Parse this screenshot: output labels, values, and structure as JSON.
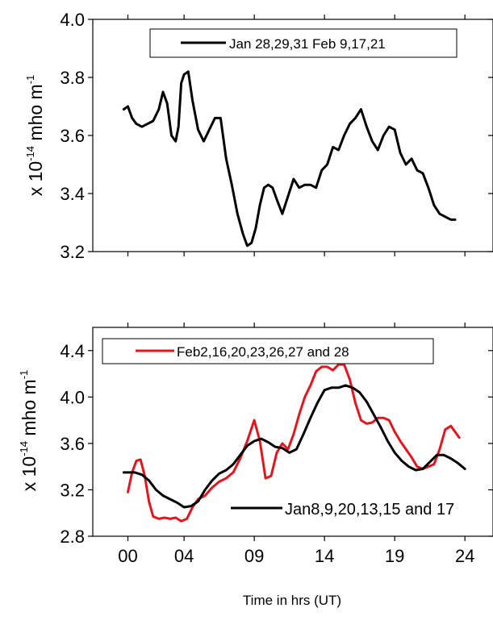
{
  "chart_data": [
    {
      "type": "line",
      "xlim": [
        -2.5,
        26
      ],
      "ylim": [
        3.2,
        4.0
      ],
      "yticks": [
        3.2,
        3.4,
        3.6,
        3.8,
        4.0
      ],
      "ytick_labels": [
        "3.2",
        "3.4",
        "3.6",
        "3.8",
        "4.0"
      ],
      "xticks_shown": false,
      "ylabel": {
        "prefix": "x 10",
        "exp": "-14",
        "unit": " mho m",
        "unit_exp": "-1"
      },
      "legend_position": "top-right",
      "series": [
        {
          "name": "Jan 28,29,31 Feb 9,17,21",
          "color": "#000000",
          "x": [
            -0.3,
            0,
            0.3,
            0.6,
            1,
            1.4,
            1.8,
            2.2,
            2.5,
            2.8,
            3.1,
            3.4,
            3.6,
            3.8,
            4,
            4.3,
            4.6,
            5,
            5.4,
            5.8,
            6.2,
            6.6,
            7,
            7.4,
            7.8,
            8.2,
            8.5,
            8.8,
            9.1,
            9.4,
            9.7,
            10,
            10.3,
            10.6,
            11,
            11.4,
            11.8,
            12.2,
            12.6,
            13,
            13.4,
            13.8,
            14.2,
            14.6,
            15,
            15.4,
            15.8,
            16.2,
            16.6,
            17,
            17.4,
            17.8,
            18.2,
            18.6,
            19,
            19.4,
            19.8,
            20.2,
            20.6,
            21,
            21.4,
            21.8,
            22.2,
            22.6,
            23,
            23.3
          ],
          "y": [
            3.69,
            3.7,
            3.66,
            3.64,
            3.63,
            3.64,
            3.65,
            3.69,
            3.75,
            3.71,
            3.6,
            3.58,
            3.63,
            3.78,
            3.81,
            3.82,
            3.72,
            3.62,
            3.58,
            3.62,
            3.66,
            3.66,
            3.52,
            3.43,
            3.33,
            3.26,
            3.22,
            3.23,
            3.28,
            3.36,
            3.42,
            3.43,
            3.42,
            3.38,
            3.33,
            3.39,
            3.45,
            3.42,
            3.43,
            3.43,
            3.42,
            3.48,
            3.5,
            3.56,
            3.55,
            3.6,
            3.64,
            3.66,
            3.69,
            3.63,
            3.58,
            3.55,
            3.6,
            3.63,
            3.62,
            3.54,
            3.5,
            3.52,
            3.48,
            3.47,
            3.42,
            3.36,
            3.33,
            3.32,
            3.31,
            3.31
          ]
        }
      ]
    },
    {
      "type": "line",
      "xlim": [
        -2.5,
        26
      ],
      "ylim": [
        2.8,
        4.6
      ],
      "xticks": [
        0,
        4,
        9,
        14,
        19,
        24
      ],
      "xtick_labels": [
        "00",
        "04",
        "09",
        "14",
        "19",
        "24"
      ],
      "yticks": [
        2.8,
        3.2,
        3.6,
        4.0,
        4.4
      ],
      "ytick_labels": [
        "2.8",
        "3.2",
        "3.6",
        "4.0",
        "4.4"
      ],
      "xlabel": "Time in hrs (UT)",
      "ylabel": {
        "prefix": "x 10",
        "exp": "-14",
        "unit": " mho m",
        "unit_exp": "-1"
      },
      "series": [
        {
          "name": "Feb2,16,20,23,26,27 and 28",
          "color": "#e8141c",
          "legend_position": "top-right",
          "x": [
            0,
            0.3,
            0.6,
            0.9,
            1.2,
            1.5,
            1.8,
            2.2,
            2.6,
            3,
            3.4,
            3.8,
            4.2,
            4.6,
            5,
            5.5,
            6,
            6.5,
            7,
            7.5,
            8,
            8.5,
            9,
            9.4,
            9.8,
            10.2,
            10.6,
            11,
            11.4,
            11.8,
            12.2,
            12.6,
            13,
            13.4,
            13.8,
            14.2,
            14.6,
            15,
            15.4,
            15.8,
            16.2,
            16.6,
            17,
            17.4,
            17.8,
            18.2,
            18.6,
            19,
            19.4,
            19.8,
            20.2,
            20.6,
            21,
            21.4,
            21.8,
            22.2,
            22.6,
            23,
            23.3,
            23.6
          ],
          "y": [
            3.18,
            3.35,
            3.45,
            3.46,
            3.32,
            3.1,
            2.97,
            2.95,
            2.96,
            2.95,
            2.96,
            2.93,
            2.95,
            3.05,
            3.12,
            3.15,
            3.22,
            3.27,
            3.3,
            3.35,
            3.47,
            3.62,
            3.8,
            3.62,
            3.3,
            3.32,
            3.52,
            3.6,
            3.55,
            3.68,
            3.85,
            4.0,
            4.1,
            4.22,
            4.26,
            4.26,
            4.23,
            4.28,
            4.28,
            4.15,
            3.95,
            3.8,
            3.77,
            3.78,
            3.82,
            3.82,
            3.8,
            3.7,
            3.62,
            3.55,
            3.48,
            3.4,
            3.38,
            3.4,
            3.42,
            3.55,
            3.72,
            3.75,
            3.7,
            3.65
          ]
        },
        {
          "name": "Jan8,9,20,13,15 and 17",
          "color": "#000000",
          "legend_position": "bottom-right",
          "x": [
            -0.3,
            0.5,
            1,
            1.5,
            2,
            2.5,
            3,
            3.5,
            4,
            4.5,
            5,
            5.5,
            6,
            6.5,
            7,
            7.5,
            8,
            8.5,
            9,
            9.5,
            10,
            10.5,
            11,
            11.5,
            12,
            12.5,
            13,
            13.5,
            14,
            14.5,
            15,
            15.5,
            16,
            16.5,
            17,
            17.5,
            18,
            18.5,
            19,
            19.5,
            20,
            20.5,
            21,
            21.5,
            22,
            22.5,
            23,
            23.5,
            24
          ],
          "y": [
            3.35,
            3.35,
            3.33,
            3.28,
            3.2,
            3.15,
            3.12,
            3.09,
            3.05,
            3.06,
            3.1,
            3.2,
            3.28,
            3.34,
            3.37,
            3.42,
            3.5,
            3.58,
            3.62,
            3.64,
            3.61,
            3.57,
            3.56,
            3.52,
            3.55,
            3.68,
            3.82,
            3.95,
            4.06,
            4.08,
            4.08,
            4.1,
            4.08,
            4.04,
            3.96,
            3.85,
            3.74,
            3.62,
            3.52,
            3.45,
            3.4,
            3.37,
            3.38,
            3.44,
            3.5,
            3.5,
            3.47,
            3.43,
            3.38
          ]
        }
      ]
    }
  ]
}
